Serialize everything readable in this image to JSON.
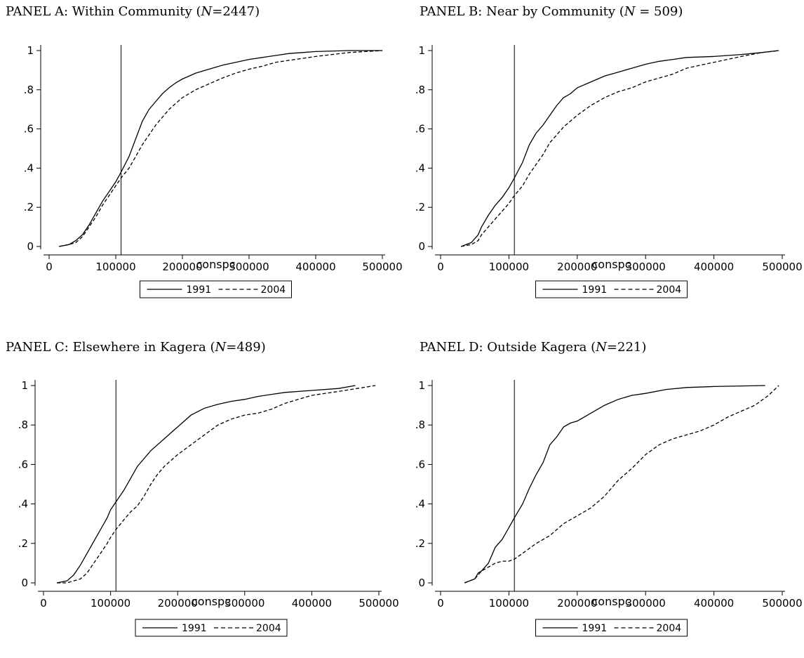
{
  "chart_data": [
    {
      "type": "line",
      "title": "PANEL A: Within Community (",
      "title_n_label": "N",
      "title_n_value": "=2447)",
      "xlabel": "conspc",
      "ylabel": "",
      "xlim": [
        0,
        500000
      ],
      "ylim": [
        0,
        1
      ],
      "x_ticks": [
        0,
        100000,
        200000,
        300000,
        400000,
        500000
      ],
      "x_tick_labels": [
        "0",
        "100000",
        "200000",
        "300000",
        "400000",
        "500000"
      ],
      "y_ticks": [
        0,
        0.2,
        0.4,
        0.6,
        0.8,
        1
      ],
      "y_tick_labels": [
        "0",
        ".2",
        ".4",
        ".6",
        ".8",
        "1"
      ],
      "reference_line_x": 108000,
      "legend": {
        "placement": "bottom-center",
        "entries": [
          "1991",
          "2004"
        ]
      },
      "series": [
        {
          "name": "1991",
          "style": "solid",
          "x": [
            15000,
            30000,
            40000,
            50000,
            60000,
            70000,
            80000,
            90000,
            100000,
            108000,
            120000,
            130000,
            140000,
            150000,
            160000,
            170000,
            180000,
            190000,
            200000,
            220000,
            240000,
            260000,
            280000,
            300000,
            320000,
            340000,
            360000,
            380000,
            400000,
            450000,
            500000
          ],
          "y": [
            0.0,
            0.01,
            0.03,
            0.06,
            0.11,
            0.17,
            0.23,
            0.28,
            0.33,
            0.38,
            0.46,
            0.55,
            0.64,
            0.7,
            0.74,
            0.78,
            0.81,
            0.835,
            0.855,
            0.885,
            0.905,
            0.925,
            0.94,
            0.955,
            0.965,
            0.975,
            0.985,
            0.99,
            0.995,
            1.0,
            1.0
          ]
        },
        {
          "name": "2004",
          "style": "dashed",
          "x": [
            15000,
            30000,
            40000,
            50000,
            60000,
            70000,
            80000,
            90000,
            100000,
            108000,
            120000,
            130000,
            140000,
            150000,
            160000,
            170000,
            180000,
            190000,
            200000,
            220000,
            240000,
            260000,
            280000,
            300000,
            320000,
            340000,
            360000,
            380000,
            400000,
            450000,
            500000
          ],
          "y": [
            0.0,
            0.01,
            0.02,
            0.05,
            0.1,
            0.15,
            0.21,
            0.26,
            0.31,
            0.35,
            0.4,
            0.46,
            0.52,
            0.57,
            0.62,
            0.66,
            0.7,
            0.73,
            0.76,
            0.8,
            0.83,
            0.86,
            0.885,
            0.905,
            0.92,
            0.94,
            0.95,
            0.96,
            0.97,
            0.99,
            1.0
          ]
        }
      ]
    },
    {
      "type": "line",
      "title": "PANEL B: Near by Community  (",
      "title_n_label": "N",
      "title_n_value": " = 509)",
      "xlabel": "conspc",
      "ylabel": "",
      "xlim": [
        0,
        500000
      ],
      "ylim": [
        0,
        1
      ],
      "x_ticks": [
        0,
        100000,
        200000,
        300000,
        400000,
        500000
      ],
      "x_tick_labels": [
        "0",
        "100000",
        "200000",
        "300000",
        "400000",
        "500000"
      ],
      "y_ticks": [
        0,
        0.2,
        0.4,
        0.6,
        0.8,
        1
      ],
      "y_tick_labels": [
        "0",
        ".2",
        ".4",
        ".6",
        ".8",
        "1"
      ],
      "reference_line_x": 108000,
      "legend": {
        "placement": "bottom-center",
        "entries": [
          "1991",
          "2004"
        ]
      },
      "series": [
        {
          "name": "1991",
          "style": "solid",
          "x": [
            30000,
            45000,
            55000,
            60000,
            70000,
            80000,
            90000,
            100000,
            108000,
            120000,
            130000,
            140000,
            150000,
            160000,
            170000,
            180000,
            190000,
            200000,
            220000,
            240000,
            260000,
            280000,
            300000,
            320000,
            340000,
            360000,
            400000,
            440000,
            470000,
            495000
          ],
          "y": [
            0.0,
            0.02,
            0.06,
            0.1,
            0.16,
            0.21,
            0.25,
            0.3,
            0.35,
            0.43,
            0.52,
            0.58,
            0.62,
            0.67,
            0.72,
            0.76,
            0.78,
            0.81,
            0.84,
            0.87,
            0.89,
            0.91,
            0.93,
            0.945,
            0.955,
            0.965,
            0.97,
            0.98,
            0.99,
            1.0
          ]
        },
        {
          "name": "2004",
          "style": "dashed",
          "x": [
            30000,
            45000,
            55000,
            60000,
            70000,
            80000,
            90000,
            100000,
            108000,
            120000,
            130000,
            140000,
            150000,
            160000,
            170000,
            180000,
            190000,
            200000,
            220000,
            240000,
            260000,
            280000,
            300000,
            320000,
            340000,
            360000,
            400000,
            440000,
            470000,
            495000
          ],
          "y": [
            0.0,
            0.01,
            0.03,
            0.06,
            0.1,
            0.14,
            0.18,
            0.22,
            0.26,
            0.31,
            0.37,
            0.42,
            0.47,
            0.53,
            0.57,
            0.61,
            0.64,
            0.67,
            0.72,
            0.76,
            0.79,
            0.81,
            0.84,
            0.86,
            0.88,
            0.91,
            0.94,
            0.97,
            0.99,
            1.0
          ]
        }
      ]
    },
    {
      "type": "line",
      "title": "PANEL C: Elsewhere in Kagera (",
      "title_n_label": "N",
      "title_n_value": "=489)",
      "xlabel": "conspc",
      "ylabel": "",
      "xlim": [
        0,
        500000
      ],
      "ylim": [
        0,
        1
      ],
      "x_ticks": [
        0,
        100000,
        200000,
        300000,
        400000,
        500000
      ],
      "x_tick_labels": [
        "0",
        "100000",
        "200000",
        "300000",
        "400000",
        "500000"
      ],
      "y_ticks": [
        0,
        0.2,
        0.4,
        0.6,
        0.8,
        1
      ],
      "y_tick_labels": [
        "0",
        ".2",
        ".4",
        ".6",
        ".8",
        "1"
      ],
      "reference_line_x": 108000,
      "legend": {
        "placement": "bottom-center",
        "entries": [
          "1991",
          "2004"
        ]
      },
      "series": [
        {
          "name": "1991",
          "style": "solid",
          "x": [
            20000,
            35000,
            45000,
            55000,
            65000,
            75000,
            85000,
            95000,
            100000,
            108000,
            120000,
            130000,
            140000,
            150000,
            160000,
            170000,
            180000,
            190000,
            200000,
            220000,
            240000,
            260000,
            280000,
            300000,
            320000,
            340000,
            360000,
            400000,
            440000,
            465000
          ],
          "y": [
            0.0,
            0.01,
            0.04,
            0.09,
            0.15,
            0.21,
            0.27,
            0.33,
            0.37,
            0.41,
            0.47,
            0.53,
            0.59,
            0.63,
            0.67,
            0.7,
            0.73,
            0.76,
            0.79,
            0.85,
            0.885,
            0.905,
            0.92,
            0.93,
            0.945,
            0.955,
            0.965,
            0.975,
            0.985,
            1.0
          ]
        },
        {
          "name": "2004",
          "style": "dashed",
          "x": [
            20000,
            35000,
            45000,
            55000,
            65000,
            75000,
            85000,
            95000,
            100000,
            108000,
            120000,
            130000,
            140000,
            150000,
            160000,
            170000,
            180000,
            190000,
            200000,
            220000,
            240000,
            260000,
            280000,
            300000,
            320000,
            340000,
            360000,
            400000,
            440000,
            495000
          ],
          "y": [
            0.0,
            0.0,
            0.01,
            0.02,
            0.05,
            0.1,
            0.15,
            0.2,
            0.23,
            0.27,
            0.32,
            0.36,
            0.39,
            0.44,
            0.5,
            0.55,
            0.59,
            0.62,
            0.65,
            0.7,
            0.75,
            0.8,
            0.83,
            0.85,
            0.86,
            0.88,
            0.91,
            0.95,
            0.97,
            1.0
          ]
        }
      ]
    },
    {
      "type": "line",
      "title": "PANEL D: Outside Kagera (",
      "title_n_label": "N",
      "title_n_value": "=221)",
      "xlabel": "conspc",
      "ylabel": "",
      "xlim": [
        0,
        500000
      ],
      "ylim": [
        0,
        1
      ],
      "x_ticks": [
        0,
        100000,
        200000,
        300000,
        400000,
        500000
      ],
      "x_tick_labels": [
        "0",
        "100000",
        "200000",
        "300000",
        "400000",
        "500000"
      ],
      "y_ticks": [
        0,
        0.2,
        0.4,
        0.6,
        0.8,
        1
      ],
      "y_tick_labels": [
        "0",
        ".2",
        ".4",
        ".6",
        ".8",
        "1"
      ],
      "reference_line_x": 108000,
      "legend": {
        "placement": "bottom-center",
        "entries": [
          "1991",
          "2004"
        ]
      },
      "series": [
        {
          "name": "1991",
          "style": "solid",
          "x": [
            35000,
            50000,
            55000,
            60000,
            70000,
            80000,
            90000,
            100000,
            108000,
            120000,
            130000,
            140000,
            150000,
            160000,
            170000,
            180000,
            190000,
            200000,
            220000,
            240000,
            260000,
            280000,
            300000,
            330000,
            360000,
            400000,
            475000
          ],
          "y": [
            0.0,
            0.02,
            0.05,
            0.06,
            0.1,
            0.18,
            0.22,
            0.28,
            0.33,
            0.4,
            0.48,
            0.55,
            0.61,
            0.7,
            0.74,
            0.79,
            0.81,
            0.82,
            0.86,
            0.9,
            0.93,
            0.95,
            0.96,
            0.98,
            0.99,
            0.995,
            1.0
          ]
        },
        {
          "name": "2004",
          "style": "dashed",
          "x": [
            35000,
            50000,
            55000,
            60000,
            70000,
            80000,
            90000,
            100000,
            108000,
            120000,
            140000,
            160000,
            180000,
            200000,
            220000,
            240000,
            260000,
            280000,
            300000,
            320000,
            340000,
            360000,
            380000,
            400000,
            420000,
            440000,
            460000,
            480000,
            495000
          ],
          "y": [
            0.0,
            0.02,
            0.04,
            0.06,
            0.08,
            0.1,
            0.11,
            0.11,
            0.12,
            0.15,
            0.2,
            0.24,
            0.3,
            0.34,
            0.38,
            0.44,
            0.52,
            0.58,
            0.65,
            0.7,
            0.73,
            0.75,
            0.77,
            0.8,
            0.84,
            0.87,
            0.9,
            0.95,
            1.0
          ]
        }
      ]
    }
  ]
}
